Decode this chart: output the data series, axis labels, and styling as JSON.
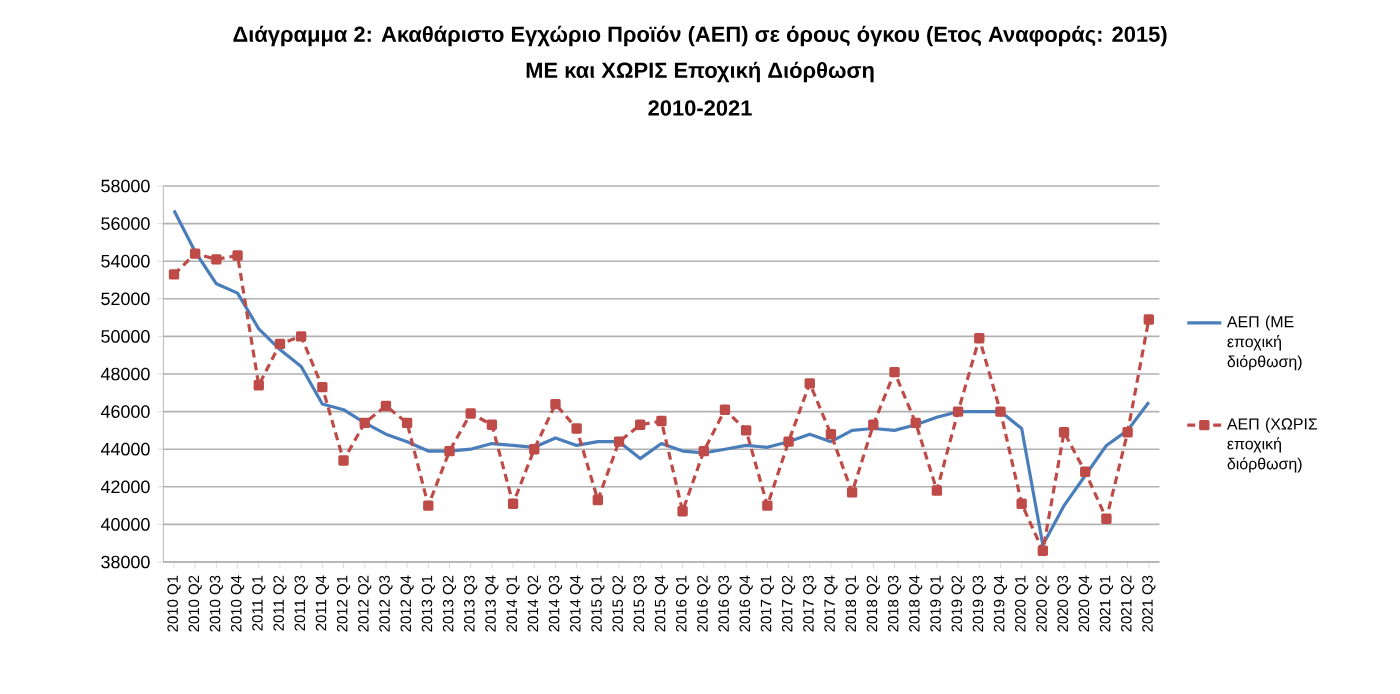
{
  "chart_data": {
    "type": "line",
    "title": "Διάγραμμα 2: Ακαθάριστο Εγχώριο Προϊόν (ΑΕΠ) σε όρους όγκου (Ετος Αναφοράς: 2015)",
    "subtitle": "ΜΕ και ΧΩΡΙΣ Εποχική Διόρθωση",
    "annotations": [
      "2010-2021"
    ],
    "categories": [
      "2010 Q1",
      "2010 Q2",
      "2010 Q3",
      "2010 Q4",
      "2011 Q1",
      "2011 Q2",
      "2011 Q3",
      "2011 Q4",
      "2012 Q1",
      "2012 Q2",
      "2012 Q3",
      "2012 Q4",
      "2013 Q1",
      "2013 Q2",
      "2013 Q3",
      "2013 Q4",
      "2014 Q1",
      "2014 Q2",
      "2014 Q3",
      "2014 Q4",
      "2015 Q1",
      "2015 Q2",
      "2015 Q3",
      "2015 Q4",
      "2016 Q1",
      "2016 Q2",
      "2016 Q3",
      "2016 Q4",
      "2017 Q1",
      "2017 Q2",
      "2017 Q3",
      "2017 Q4",
      "2018 Q1",
      "2018 Q2",
      "2018 Q3",
      "2018 Q4",
      "2019 Q1",
      "2019 Q2",
      "2019 Q3",
      "2019 Q4",
      "2020 Q1",
      "2020 Q2",
      "2020 Q3",
      "2020 Q4",
      "2021 Q1",
      "2021 Q2",
      "2021 Q3"
    ],
    "series": [
      {
        "name": "ΑΕΠ (ΜΕ εποχική διόρθωση)",
        "color": "#4a7ebb",
        "marker": "none",
        "line_style": "solid",
        "values": [
          56700,
          54500,
          52800,
          52300,
          50400,
          49300,
          48400,
          46400,
          46100,
          45400,
          44800,
          44400,
          43900,
          43900,
          44000,
          44300,
          44200,
          44100,
          44600,
          44200,
          44400,
          44400,
          43500,
          44300,
          43900,
          43800,
          44000,
          44200,
          44100,
          44400,
          44800,
          44400,
          45000,
          45100,
          45000,
          45300,
          45700,
          46000,
          46000,
          46000,
          45100,
          38900,
          41000,
          42600,
          44200,
          45000,
          46500
        ]
      },
      {
        "name": "ΑΕΠ (ΧΩΡΙΣ εποχική διόρθωση)",
        "color": "#be4b48",
        "marker": "square",
        "line_style": "dashed",
        "values": [
          53300,
          54400,
          54100,
          54300,
          47400,
          49600,
          50000,
          47300,
          43400,
          45400,
          46300,
          45400,
          41000,
          43900,
          45900,
          45300,
          41100,
          44000,
          46400,
          45100,
          41300,
          44400,
          45300,
          45500,
          40700,
          43900,
          46100,
          45000,
          41000,
          44400,
          47500,
          44800,
          41700,
          45300,
          48100,
          45400,
          41800,
          46000,
          49900,
          46000,
          41100,
          38600,
          44900,
          42800,
          40300,
          44900,
          50900
        ]
      }
    ],
    "ylim": [
      38000,
      58000
    ],
    "yticks": [
      38000,
      40000,
      42000,
      44000,
      46000,
      48000,
      50000,
      52000,
      54000,
      56000,
      58000
    ],
    "grid": "y",
    "legend": "right"
  }
}
